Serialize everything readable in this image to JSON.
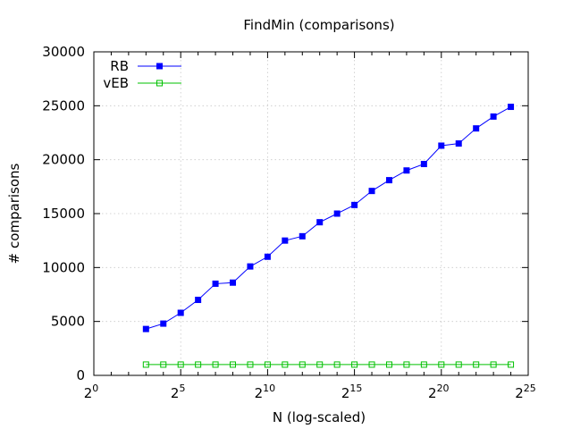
{
  "chart_data": {
    "type": "line",
    "title": "FindMin (comparisons)",
    "xlabel": "N (log-scaled)",
    "ylabel": "# comparisons",
    "x_scale": "log2",
    "xlim": [
      0,
      25
    ],
    "ylim": [
      0,
      30000
    ],
    "x_ticks": [
      0,
      5,
      10,
      15,
      20,
      25
    ],
    "x_tick_base": "2",
    "y_ticks": [
      0,
      5000,
      10000,
      15000,
      20000,
      25000,
      30000
    ],
    "grid": true,
    "legend_position": "top-left",
    "x": [
      3,
      4,
      5,
      6,
      7,
      8,
      9,
      10,
      11,
      12,
      13,
      14,
      15,
      16,
      17,
      18,
      19,
      20,
      21,
      22,
      23,
      24
    ],
    "series": [
      {
        "name": "RB",
        "color": "#0000ff",
        "marker": "filled-square",
        "values": [
          4300,
          4800,
          5800,
          7000,
          8500,
          8600,
          10100,
          11000,
          12500,
          12900,
          14200,
          15000,
          15800,
          17100,
          18100,
          19000,
          19600,
          21300,
          21500,
          22900,
          24000,
          24900
        ]
      },
      {
        "name": "vEB",
        "color": "#00c000",
        "marker": "open-square",
        "values": [
          1000,
          1000,
          1000,
          1000,
          1000,
          1000,
          1000,
          1000,
          1000,
          1000,
          1000,
          1000,
          1000,
          1000,
          1000,
          1000,
          1000,
          1000,
          1000,
          1000,
          1000,
          1000
        ]
      }
    ]
  }
}
